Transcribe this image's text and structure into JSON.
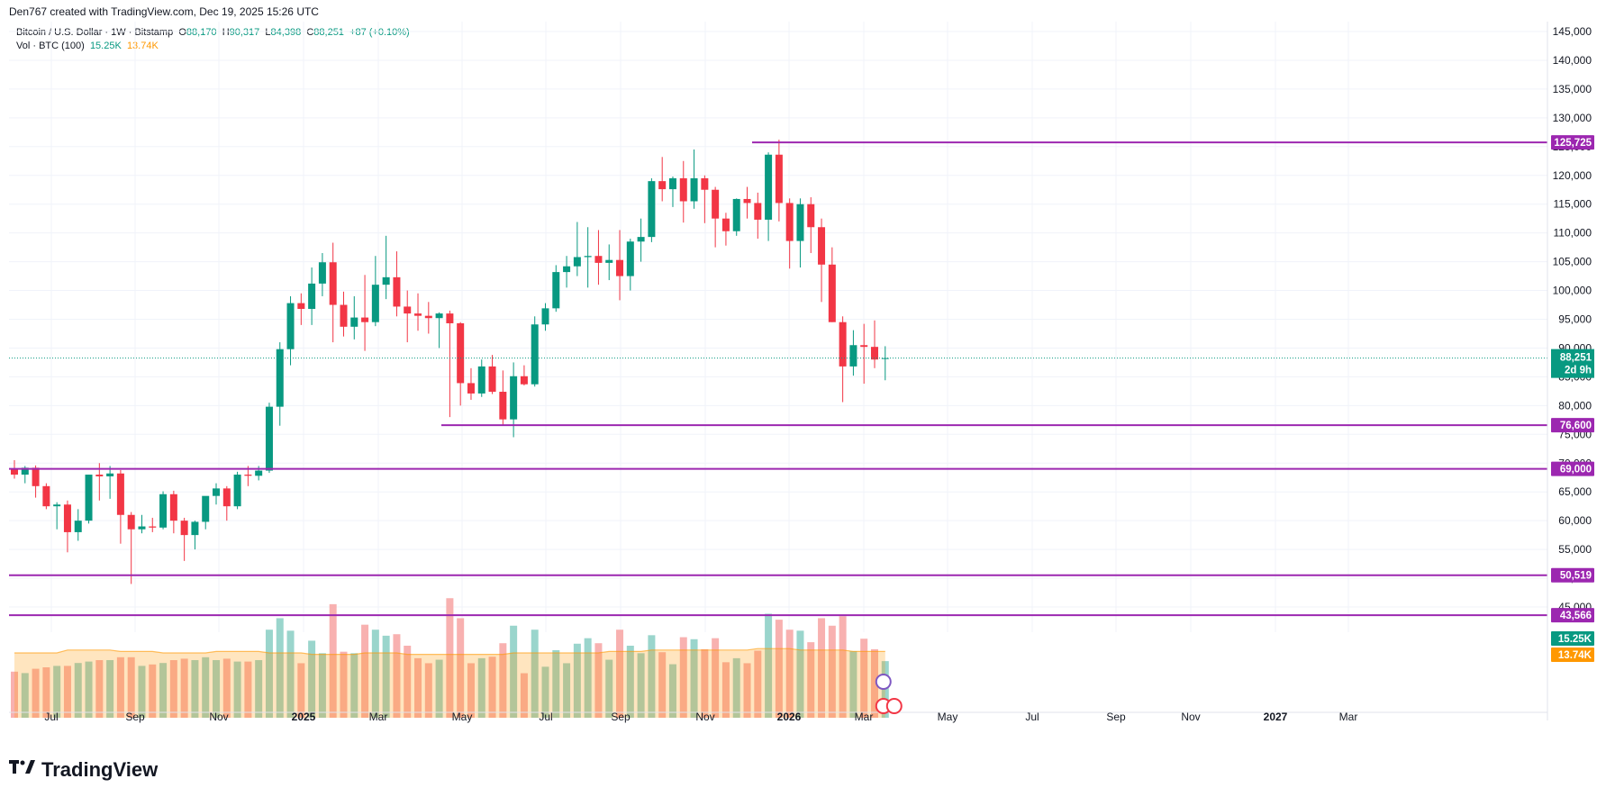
{
  "header": {
    "attribution": "Den767 created with TradingView.com, Dec 19, 2025 15:26 UTC"
  },
  "legend": {
    "symbol": "Bitcoin / U.S. Dollar · 1W · Bitstamp",
    "open_label": "O",
    "open": "88,170",
    "high_label": "H",
    "high": "90,317",
    "low_label": "L",
    "low": "84,398",
    "close_label": "C",
    "close": "88,251",
    "change": "+87 (+0.10%)",
    "vol_label": "Vol · BTC (100)",
    "vol_value": "15.25K",
    "vol_ma": "13.74K"
  },
  "price_axis": {
    "ticks": [
      "145,000",
      "140,000",
      "135,000",
      "130,000",
      "125,000",
      "120,000",
      "115,000",
      "110,000",
      "105,000",
      "100,000",
      "95,000",
      "90,000",
      "85,000",
      "80,000",
      "75,000",
      "70,000",
      "65,000",
      "60,000",
      "55,000",
      "50,000",
      "45,000"
    ]
  },
  "time_axis": {
    "labels": [
      "Jul",
      "Sep",
      "Nov",
      "2025",
      "Mar",
      "May",
      "Jul",
      "Sep",
      "Nov",
      "2026",
      "Mar",
      "May",
      "Jul",
      "Sep",
      "Nov",
      "2027",
      "Mar"
    ]
  },
  "levels": [
    {
      "label": "125,725",
      "value": 125725
    },
    {
      "label": "76,600",
      "value": 76600
    },
    {
      "label": "69,000",
      "value": 69000
    },
    {
      "label": "50,519",
      "value": 50519
    },
    {
      "label": "43,566",
      "value": 43566
    }
  ],
  "current_price": {
    "label": "88,251",
    "countdown": "2d 9h"
  },
  "volume_labels": {
    "current": "15.25K",
    "ma": "13.74K"
  },
  "colors": {
    "up": "#089981",
    "down": "#f23645",
    "level": "#9c27b0",
    "vol_up": "#8fd0c6",
    "vol_down": "#f7a9a7",
    "vol_ma": "#ff9800"
  },
  "chart_data": {
    "type": "candlestick",
    "title": "Bitcoin / U.S. Dollar · 1W · Bitstamp",
    "interval": "1W",
    "ylim": [
      42000,
      147000
    ],
    "grid": true,
    "candles": [
      [
        69000,
        70500,
        67300,
        68000
      ],
      [
        68000,
        69500,
        66500,
        69200
      ],
      [
        69200,
        69600,
        64000,
        66000
      ],
      [
        66000,
        66500,
        62000,
        62500
      ],
      [
        62500,
        63200,
        58500,
        62800
      ],
      [
        62800,
        63500,
        54500,
        58000
      ],
      [
        58000,
        62000,
        56500,
        60000
      ],
      [
        60000,
        68000,
        59500,
        68000
      ],
      [
        68000,
        70000,
        63500,
        67700
      ],
      [
        67700,
        69500,
        63800,
        68200
      ],
      [
        68200,
        68800,
        56000,
        61000
      ],
      [
        61000,
        61500,
        49000,
        58500
      ],
      [
        58500,
        61000,
        57800,
        59000
      ],
      [
        59000,
        60500,
        58000,
        58800
      ],
      [
        58800,
        65100,
        58500,
        64600
      ],
      [
        64600,
        65200,
        57800,
        60000
      ],
      [
        60000,
        60500,
        53000,
        57500
      ],
      [
        57500,
        60000,
        55000,
        59800
      ],
      [
        59800,
        64000,
        58500,
        64300
      ],
      [
        64300,
        66500,
        62800,
        65600
      ],
      [
        65600,
        66000,
        60000,
        62500
      ],
      [
        62500,
        68500,
        62000,
        68000
      ],
      [
        68000,
        69500,
        66000,
        67800
      ],
      [
        67800,
        69500,
        67000,
        68700
      ],
      [
        68700,
        80500,
        68300,
        79800
      ],
      [
        79800,
        91000,
        76500,
        89800
      ],
      [
        89800,
        99000,
        87000,
        97800
      ],
      [
        97800,
        99500,
        94000,
        96800
      ],
      [
        96800,
        104000,
        94000,
        101200
      ],
      [
        101200,
        106500,
        99000,
        104900
      ],
      [
        104900,
        108300,
        91000,
        97500
      ],
      [
        97500,
        99800,
        92000,
        93700
      ],
      [
        93700,
        99000,
        91500,
        95300
      ],
      [
        95300,
        102700,
        89500,
        94500
      ],
      [
        94500,
        106000,
        93800,
        101000
      ],
      [
        101000,
        109500,
        98500,
        102300
      ],
      [
        102300,
        106800,
        95500,
        97200
      ],
      [
        97200,
        100000,
        91000,
        96000
      ],
      [
        96000,
        99500,
        93000,
        95600
      ],
      [
        95600,
        98000,
        92500,
        95200
      ],
      [
        95200,
        96200,
        90000,
        96000
      ],
      [
        96000,
        96500,
        78000,
        94300
      ],
      [
        94300,
        94500,
        80000,
        83900
      ],
      [
        83900,
        86500,
        81000,
        82100
      ],
      [
        82100,
        88000,
        81500,
        86800
      ],
      [
        86800,
        88800,
        82000,
        82400
      ],
      [
        82400,
        86100,
        76600,
        77600
      ],
      [
        77600,
        87500,
        74500,
        85100
      ],
      [
        85100,
        87000,
        83500,
        83700
      ],
      [
        83700,
        95500,
        83300,
        94100
      ],
      [
        94100,
        97800,
        93000,
        96900
      ],
      [
        96900,
        104400,
        96300,
        103200
      ],
      [
        103200,
        106000,
        100500,
        104200
      ],
      [
        104200,
        111900,
        102500,
        105800
      ],
      [
        105800,
        111000,
        100500,
        106000
      ],
      [
        106000,
        110500,
        101000,
        104800
      ],
      [
        104800,
        108000,
        101800,
        105300
      ],
      [
        105300,
        110500,
        98300,
        102500
      ],
      [
        102500,
        109000,
        100000,
        108500
      ],
      [
        108500,
        112500,
        105000,
        109300
      ],
      [
        109300,
        119500,
        108400,
        119000
      ],
      [
        119000,
        123200,
        115500,
        117600
      ],
      [
        117600,
        119800,
        114500,
        119500
      ],
      [
        119500,
        122500,
        111800,
        115500
      ],
      [
        115500,
        124500,
        114200,
        119500
      ],
      [
        119500,
        120000,
        111700,
        117500
      ],
      [
        117500,
        118000,
        107500,
        112500
      ],
      [
        112500,
        113500,
        107800,
        110300
      ],
      [
        110300,
        116000,
        109500,
        115900
      ],
      [
        115900,
        118000,
        112500,
        115200
      ],
      [
        115200,
        117000,
        109000,
        112300
      ],
      [
        112300,
        124000,
        108600,
        123600
      ],
      [
        123600,
        126200,
        112000,
        115200
      ],
      [
        115200,
        116000,
        103800,
        108600
      ],
      [
        108600,
        116000,
        104000,
        115000
      ],
      [
        115000,
        116200,
        106500,
        111000
      ],
      [
        111000,
        112500,
        98000,
        104500
      ],
      [
        104500,
        107500,
        94500,
        94500
      ],
      [
        94500,
        95500,
        80600,
        86800
      ],
      [
        86800,
        93100,
        85200,
        90500
      ],
      [
        90500,
        94200,
        83800,
        90200
      ],
      [
        90200,
        94800,
        86500,
        88000
      ],
      [
        88170,
        90317,
        84398,
        88251
      ]
    ],
    "volume_lead": [
      32,
      31,
      34,
      35,
      36,
      36,
      38,
      39,
      40,
      40,
      42,
      42,
      36,
      37,
      38,
      40,
      41,
      40,
      42,
      40,
      41,
      39,
      39,
      40
    ],
    "volume_ma": [
      45,
      47,
      46,
      45,
      46,
      45,
      44,
      45,
      44,
      44,
      45,
      45,
      46,
      47,
      47,
      48,
      47,
      46
    ],
    "levels": [
      125725,
      76600,
      69000,
      50519,
      43566
    ],
    "last_price": 88251
  }
}
